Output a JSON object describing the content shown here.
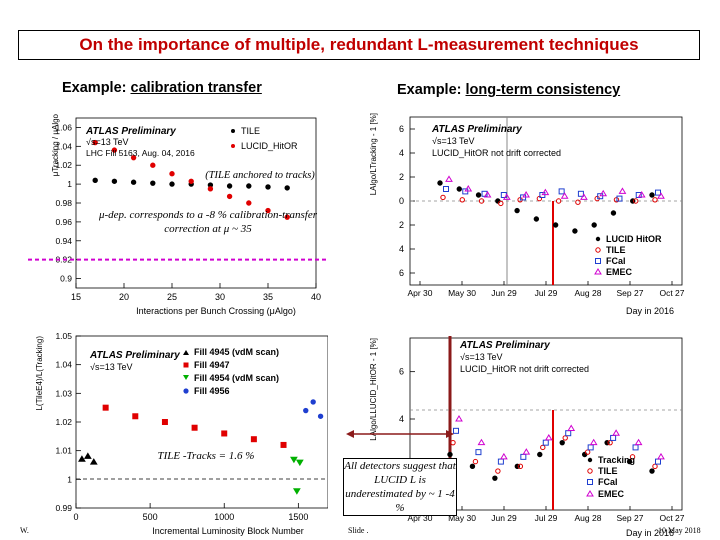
{
  "slide": {
    "title": "On the importance of multiple, redundant L-measurement techniques",
    "left_heading_prefix": "Example: ",
    "left_heading_link": "calibration transfer",
    "right_heading_prefix": "Example: ",
    "right_heading_link": "long-term consistency",
    "note_anchor": "(TILE anchored to tracks)",
    "note_mu": "μ-dep. corresponds to a -8 % calibration-transfer correction at μ ~ 35",
    "note_tile": "TILE -Tracks = 1.6 %",
    "note_detectors": "All detectors suggest that LUCID L is underestimated by ~ 1 -4 %",
    "footer_left": "W.",
    "footer_mid": "Slide .",
    "footer_right": "10 May 2018"
  },
  "colors": {
    "title": "#c00000",
    "black": "#000000",
    "red": "#e00000",
    "blue": "#1f3fd0",
    "green": "#00b000",
    "magenta": "#d000d0",
    "pink": "#e06090",
    "purple": "#8a5a8a",
    "darkred": "#8b1a1a"
  },
  "chart_data": [
    {
      "type": "scatter",
      "atlas": "ATLAS Preliminary",
      "energy": "√s=13 TeV",
      "run": "LHC Fill 5163, Aug. 04, 2016",
      "xlabel": "Interactions per Bunch Crossing (μAlgo)",
      "ylabel": "μTracking / μAlgo",
      "xlim": [
        15,
        40
      ],
      "ylim": [
        0.89,
        1.07
      ],
      "xticks": [
        "15",
        "20",
        "25",
        "30",
        "35",
        "40"
      ],
      "yticks": [
        "0.9",
        "0.92",
        "0.94",
        "0.96",
        "0.98",
        "1",
        "1.02",
        "1.04",
        "1.06"
      ],
      "reference_line": 0.92,
      "series": [
        {
          "name": "TILE",
          "x": [
            17,
            19,
            21,
            23,
            25,
            27,
            29,
            31,
            33,
            35,
            37
          ],
          "y": [
            1.004,
            1.003,
            1.002,
            1.001,
            1.0,
            1.0,
            0.999,
            0.998,
            0.998,
            0.997,
            0.996
          ]
        },
        {
          "name": "LUCID_HitOR",
          "x": [
            17,
            19,
            21,
            23,
            25,
            27,
            29,
            31,
            33,
            35,
            37
          ],
          "y": [
            1.044,
            1.036,
            1.028,
            1.02,
            1.011,
            1.003,
            0.995,
            0.987,
            0.98,
            0.972,
            0.965
          ]
        }
      ]
    },
    {
      "type": "scatter",
      "atlas": "ATLAS Preliminary",
      "energy": "√s=13 TeV",
      "subtitle": "LUCID_HitOR not drift corrected",
      "xlabel": "Day in 2016",
      "ylabel": "LAlgo/LTracking - 1 [%]",
      "ylim": [
        -7,
        7
      ],
      "xticks": [
        "Apr 30",
        "May 30",
        "Jun 29",
        "Jul 29",
        "Aug 28",
        "Sep 27",
        "Oct 27"
      ],
      "yticks": [
        "6",
        "4",
        "2",
        "0",
        "2",
        "4",
        "6"
      ],
      "series": [
        {
          "name": "LUCID HitOR",
          "y": [
            1.5,
            1.0,
            0.5,
            0.0,
            -0.8,
            -1.5,
            -2.0,
            -2.5,
            -2.0,
            -1.0,
            0.0,
            0.5
          ]
        },
        {
          "name": "TILE",
          "y": [
            0.3,
            0.1,
            0.0,
            -0.2,
            0.1,
            0.2,
            0.0,
            -0.1,
            0.2,
            0.1,
            0.0,
            0.1
          ]
        },
        {
          "name": "FCal",
          "y": [
            1.0,
            0.8,
            0.6,
            0.5,
            0.3,
            0.5,
            0.8,
            0.6,
            0.4,
            0.2,
            0.5,
            0.7
          ]
        },
        {
          "name": "EMEC",
          "y": [
            1.8,
            1.0,
            0.5,
            0.3,
            0.5,
            0.7,
            0.4,
            0.3,
            0.6,
            0.8,
            0.5,
            0.4
          ]
        }
      ]
    },
    {
      "type": "scatter",
      "atlas": "ATLAS Preliminary",
      "energy": "√s=13 TeV",
      "xlabel": "Incremental Luminosity Block Number",
      "ylabel": "L(TileE4)/L(Tracking)",
      "xlim": [
        0,
        1700
      ],
      "ylim": [
        0.99,
        1.05
      ],
      "xticks": [
        "0",
        "500",
        "1000",
        "1500"
      ],
      "yticks": [
        "0.99",
        "1",
        "1.01",
        "1.02",
        "1.03",
        "1.04",
        "1.05"
      ],
      "series": [
        {
          "name": "Fill 4945 (vdM scan)",
          "x": [
            40,
            80,
            120
          ],
          "y": [
            1.007,
            1.008,
            1.006
          ]
        },
        {
          "name": "Fill 4947",
          "x": [
            200,
            400,
            600,
            800,
            1000,
            1200,
            1400
          ],
          "y": [
            1.025,
            1.022,
            1.02,
            1.018,
            1.016,
            1.014,
            1.012
          ]
        },
        {
          "name": "Fill 4954 (vdM scan)",
          "x": [
            1470,
            1490,
            1510
          ],
          "y": [
            1.007,
            0.996,
            1.006
          ]
        },
        {
          "name": "Fill 4956",
          "x": [
            1550,
            1600,
            1650
          ],
          "y": [
            1.024,
            1.027,
            1.022
          ]
        }
      ]
    },
    {
      "type": "scatter",
      "atlas": "ATLAS Preliminary",
      "energy": "√s=13 TeV",
      "subtitle": "LUCID_HitOR not drift corrected",
      "xlabel": "Day in 2016",
      "ylabel": "LAlgo/LLUCID_HitOR - 1 [%]",
      "xticks": [
        "Apr 30",
        "May 30",
        "Jun 29",
        "Jul 29",
        "Aug 28",
        "Sep 27",
        "Oct 27"
      ],
      "yticks": [
        "6",
        "4",
        "2"
      ],
      "series": [
        {
          "name": "Tracking",
          "y": [
            2.5,
            2.0,
            1.5,
            2.0,
            2.5,
            3.0,
            2.5,
            3.0,
            2.2,
            1.8
          ]
        },
        {
          "name": "TILE",
          "y": [
            3.0,
            2.2,
            1.8,
            2.0,
            2.8,
            3.2,
            2.6,
            3.0,
            2.4,
            2.0
          ]
        },
        {
          "name": "FCal",
          "y": [
            3.5,
            2.6,
            2.2,
            2.4,
            3.0,
            3.4,
            2.8,
            3.2,
            2.8,
            2.2
          ]
        },
        {
          "name": "EMEC",
          "y": [
            4.0,
            3.0,
            2.4,
            2.6,
            3.2,
            3.6,
            3.0,
            3.4,
            3.0,
            2.4
          ]
        }
      ]
    }
  ]
}
